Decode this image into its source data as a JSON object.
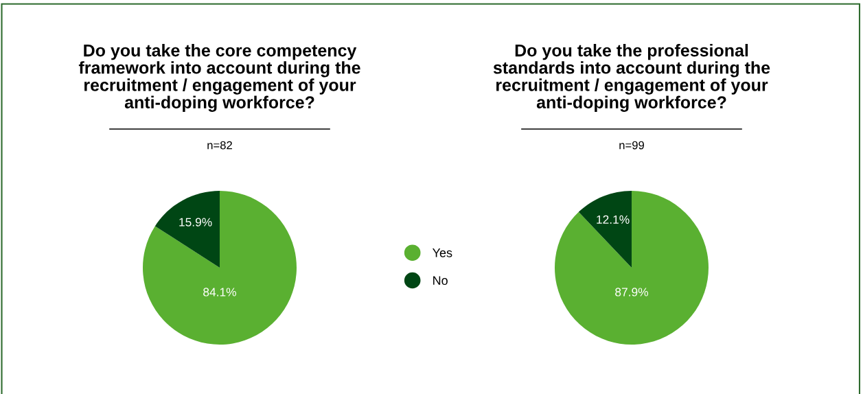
{
  "chart_data": [
    {
      "type": "pie",
      "title": "Do you take the core competency\nframework into account during the\nrecruitment / engagement of your\nanti-doping workforce?",
      "subtitle": "n=82",
      "categories": [
        "Yes",
        "No"
      ],
      "values": [
        84.1,
        15.9
      ],
      "value_labels": [
        "84.1%",
        "15.9%"
      ],
      "colors": [
        "#5ab031",
        "#004614"
      ],
      "legend": "right"
    },
    {
      "type": "pie",
      "title": "Do you take the professional\nstandards into account during the\nrecruitment / engagement of your\nanti-doping workforce?",
      "subtitle": "n=99",
      "categories": [
        null,
        null
      ],
      "values": [
        87.9,
        12.1
      ],
      "value_labels": [
        "87.9%",
        "12.1%"
      ],
      "colors": [
        "#5ab031",
        "#004614"
      ]
    }
  ]
}
